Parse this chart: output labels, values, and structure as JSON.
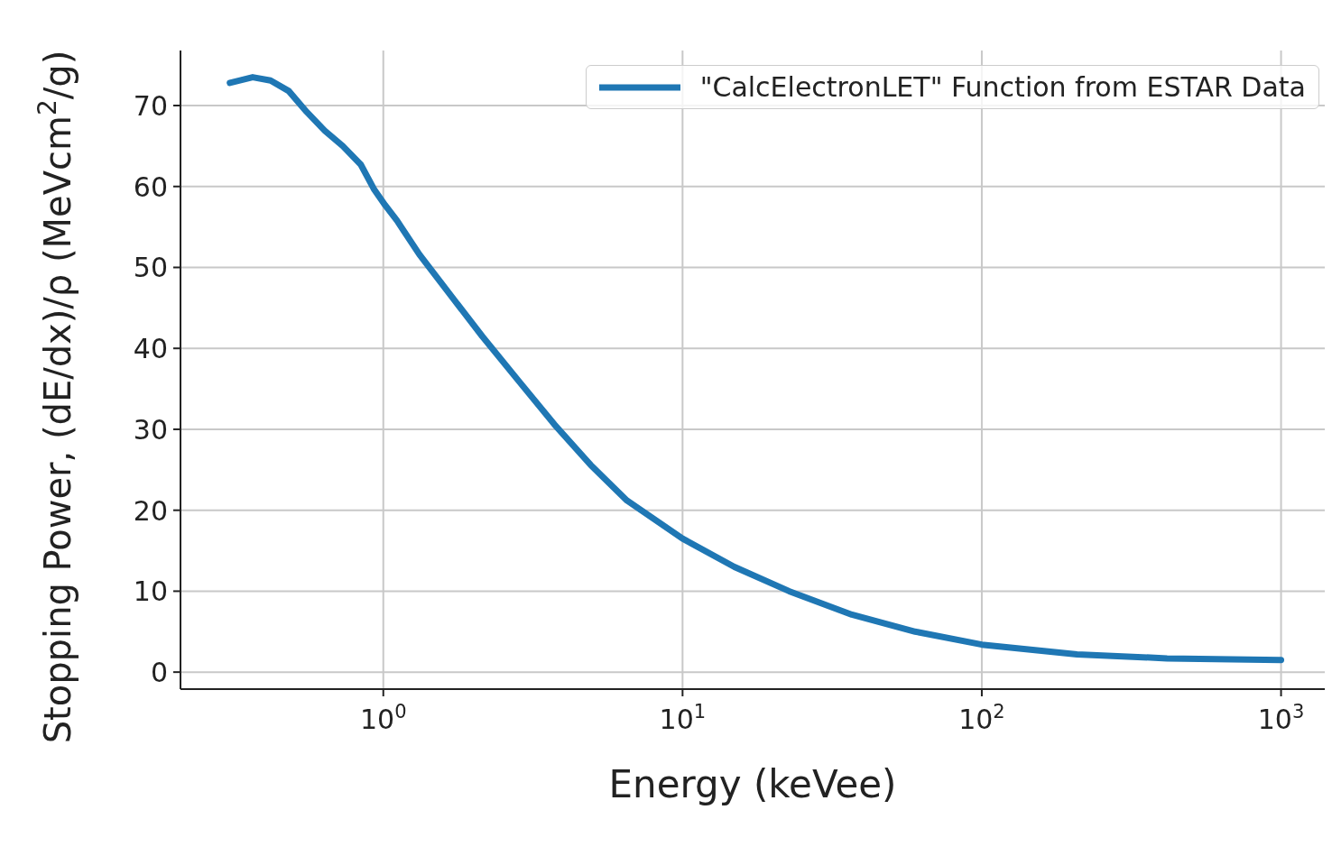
{
  "chart_data": {
    "type": "line",
    "xlabel": "Energy (keVee)",
    "ylabel": "Stopping Power, (dE/dx)/ρ (MeVcm$^{2}$/g)",
    "log": "x",
    "xlim": [
      0.21,
      1400
    ],
    "ylim": [
      -2.1,
      76.8
    ],
    "xticks": [
      {
        "value": 1,
        "label": "10$^{0}$"
      },
      {
        "value": 10,
        "label": "10$^{1}$"
      },
      {
        "value": 100,
        "label": "10$^{2}$"
      },
      {
        "value": 1000,
        "label": "10$^{3}$"
      }
    ],
    "yticks": [
      0,
      10,
      20,
      30,
      40,
      50,
      60,
      70
    ],
    "grid": true,
    "legend": "top right",
    "line_style": "solid",
    "marker": "none",
    "series": [
      {
        "name": "\"CalcElectronLET\" Function from ESTAR Data",
        "color": "#1f77b4",
        "x": [
          0.307,
          0.366,
          0.42,
          0.483,
          0.555,
          0.637,
          0.732,
          0.841,
          0.933,
          1.014,
          1.11,
          1.32,
          1.62,
          2.14,
          2.83,
          3.73,
          4.93,
          6.52,
          10,
          14.9,
          22.7,
          36.8,
          59.9,
          100,
          208,
          416,
          1000
        ],
        "values": [
          72.8,
          73.5,
          73.1,
          71.8,
          69.2,
          66.9,
          65.0,
          62.7,
          59.6,
          57.7,
          55.8,
          51.6,
          47.3,
          41.5,
          36.0,
          30.6,
          25.6,
          21.2,
          16.5,
          13.0,
          10.0,
          7.1,
          5.0,
          3.4,
          2.2,
          1.7,
          1.5
        ]
      }
    ]
  }
}
